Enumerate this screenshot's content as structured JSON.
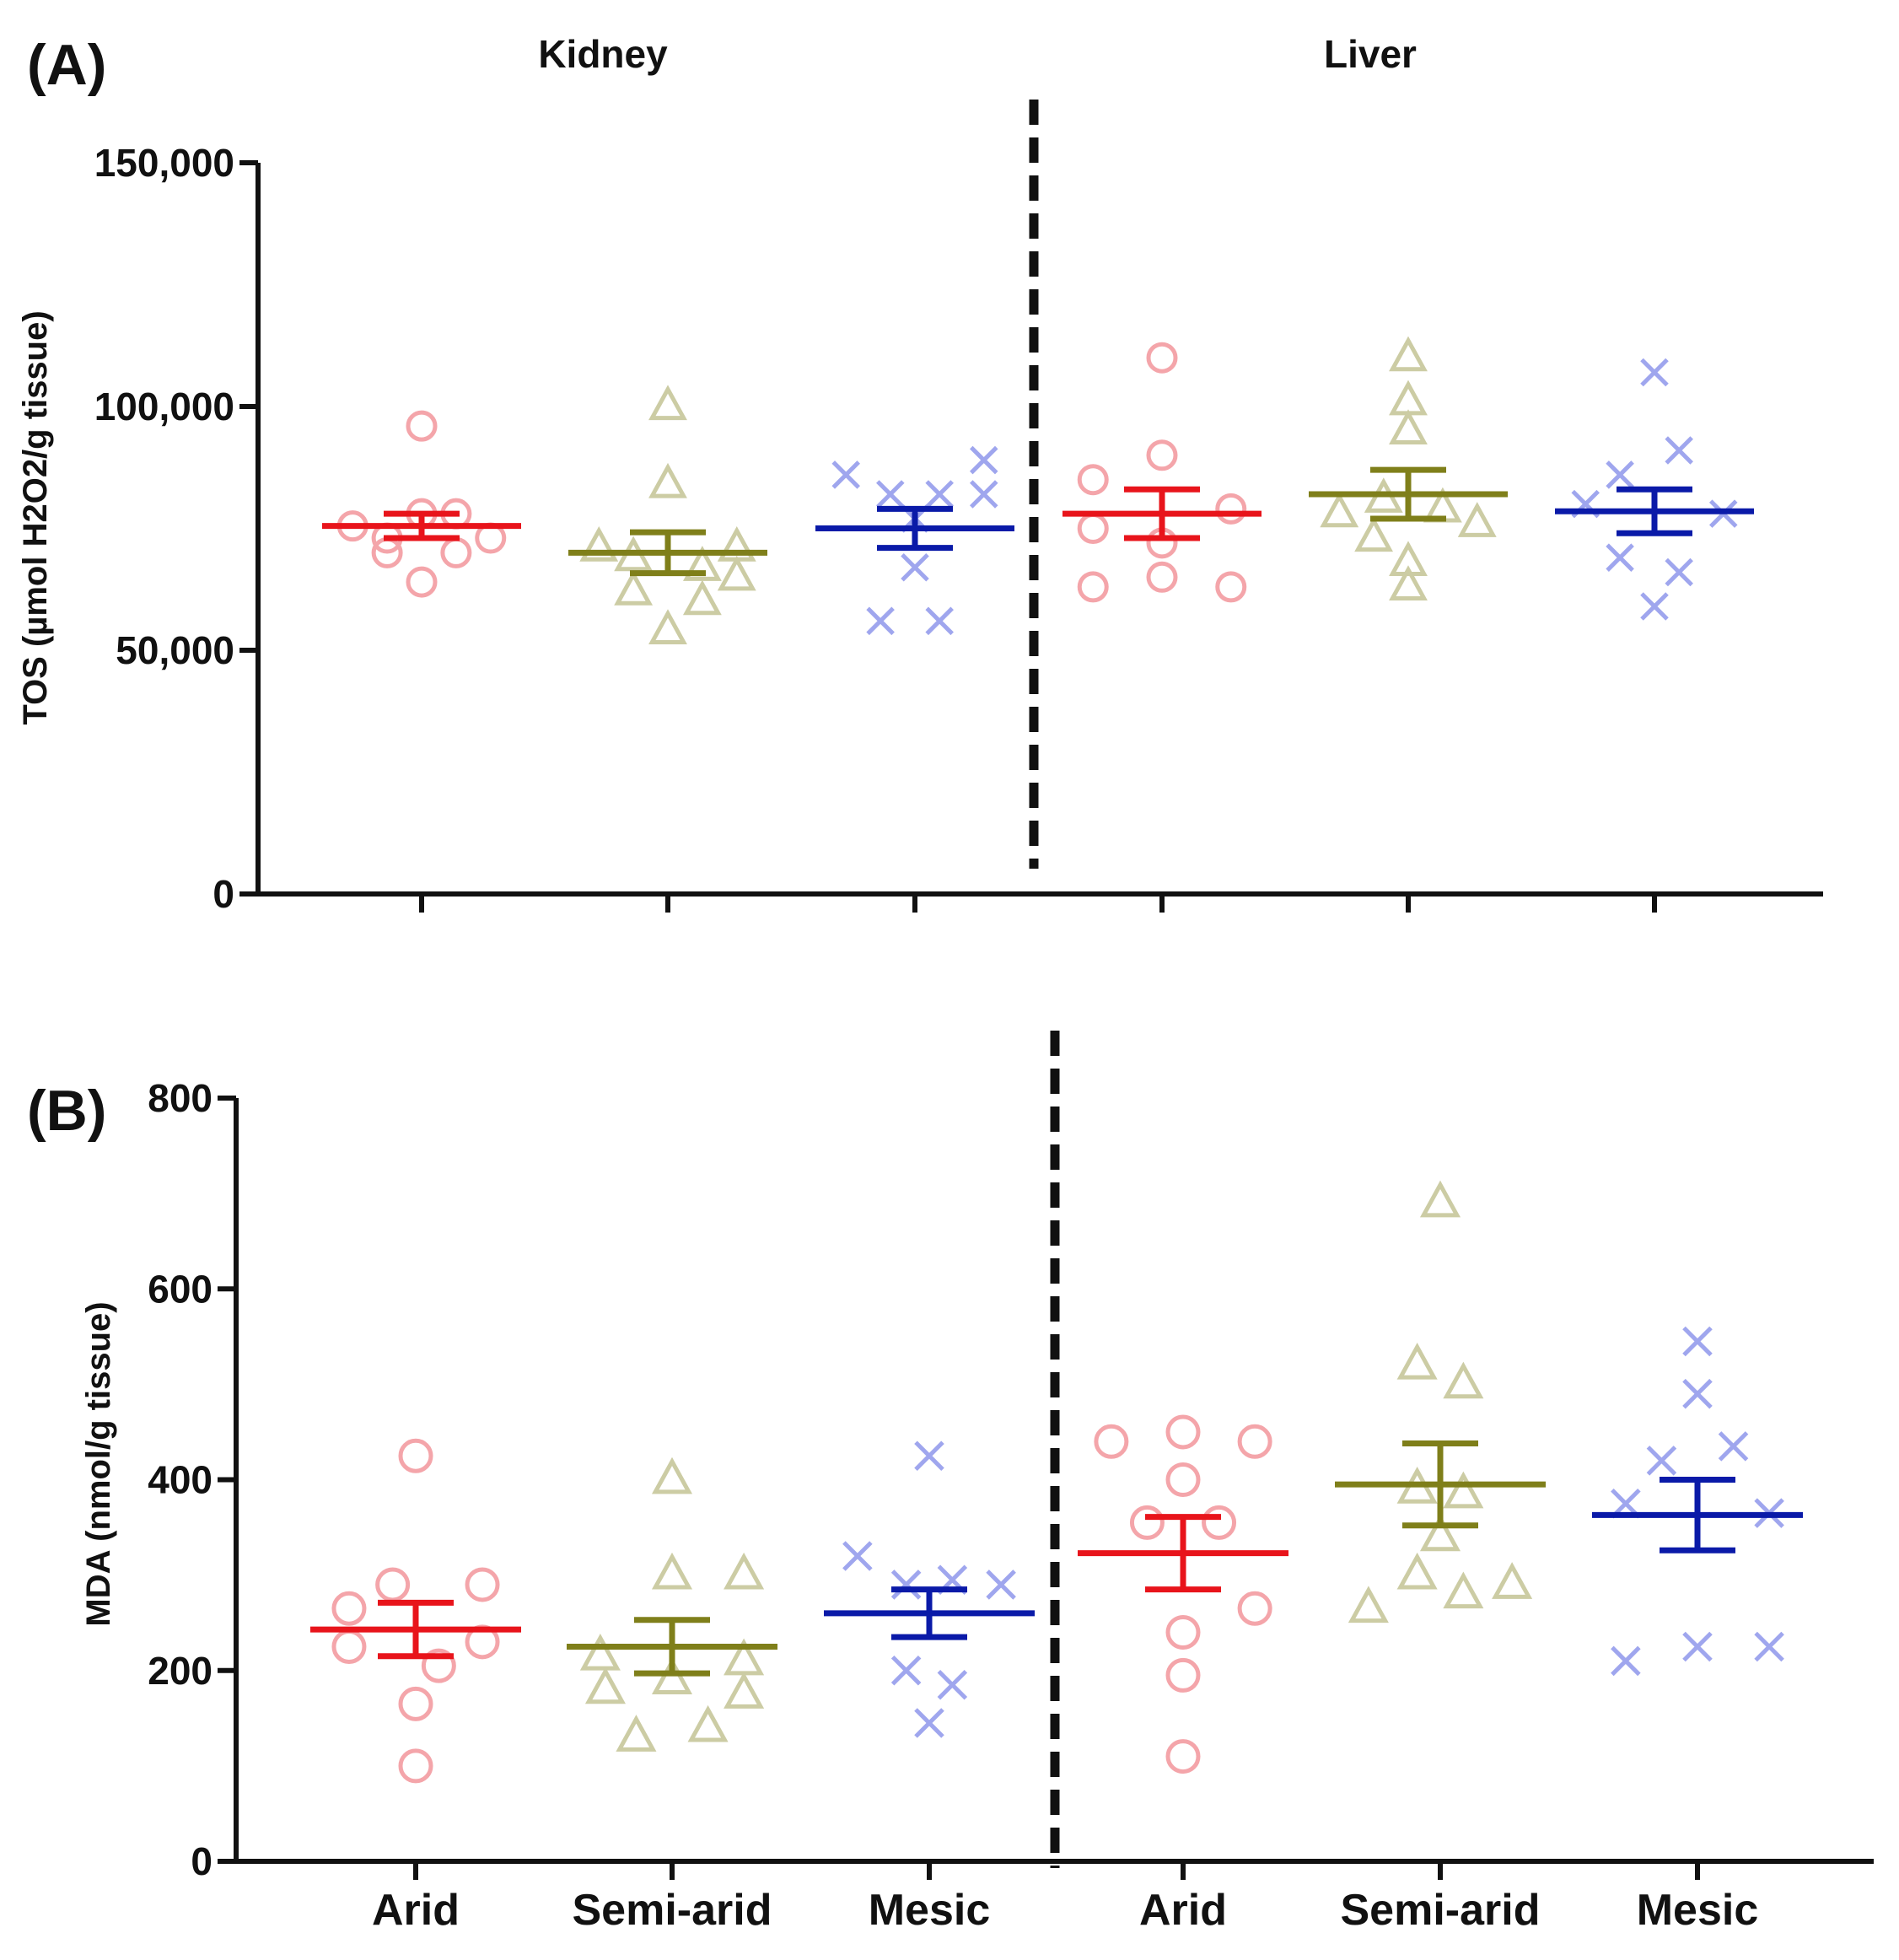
{
  "chart_data": [
    {
      "type": "scatter",
      "panel_label": "(A)",
      "group_headers": [
        "Kidney",
        "Liver"
      ],
      "ylabel": "TOS (µmol H2O2/g tissue)",
      "ylim": [
        0,
        150000
      ],
      "yticks": [
        0,
        50000,
        100000,
        150000
      ],
      "ytick_labels": [
        "0",
        "50,000",
        "100,000",
        "150,000"
      ],
      "categories": [
        "Arid",
        "Semi-arid",
        "Mesic",
        "Arid",
        "Semi-arid",
        "Mesic"
      ],
      "show_category_labels": false,
      "colors": {
        "Arid": "#e8141b",
        "Semi-arid": "#7f7f1a",
        "Mesic": "#0a1aa8"
      },
      "point_colors": {
        "Arid": "#f4a5aa",
        "Semi-arid": "#cccca4",
        "Mesic": "#9fa6ee"
      },
      "markers": {
        "Arid": "circle",
        "Semi-arid": "triangle",
        "Mesic": "cross"
      },
      "groups": [
        {
          "organ": "Kidney",
          "habitat": "Arid",
          "mean": 75500,
          "sem": 2500,
          "points": [
            [
              -0.28,
              75500
            ],
            [
              -0.14,
              73000
            ],
            [
              -0.14,
              70000
            ],
            [
              0,
              96000
            ],
            [
              0,
              78000
            ],
            [
              0,
              64000
            ],
            [
              0.14,
              78000
            ],
            [
              0.14,
              70000
            ],
            [
              0.28,
              73000
            ]
          ]
        },
        {
          "organ": "Kidney",
          "habitat": "Semi-arid",
          "mean": 70000,
          "sem": 4200,
          "points": [
            [
              -0.28,
              71000
            ],
            [
              -0.14,
              62000
            ],
            [
              -0.14,
              69000
            ],
            [
              0,
              100000
            ],
            [
              0,
              84000
            ],
            [
              0,
              54000
            ],
            [
              0.14,
              60000
            ],
            [
              0.14,
              67000
            ],
            [
              0.28,
              71000
            ],
            [
              0.28,
              65000
            ]
          ]
        },
        {
          "organ": "Kidney",
          "habitat": "Mesic",
          "mean": 75000,
          "sem": 4000,
          "points": [
            [
              -0.28,
              86000
            ],
            [
              -0.14,
              56000
            ],
            [
              -0.1,
              82000
            ],
            [
              0,
              77000
            ],
            [
              0,
              67000
            ],
            [
              0.1,
              82000
            ],
            [
              0.1,
              56000
            ],
            [
              0.28,
              89000
            ],
            [
              0.28,
              82000
            ]
          ]
        },
        {
          "organ": "Liver",
          "habitat": "Arid",
          "mean": 78000,
          "sem": 5000,
          "points": [
            [
              -0.28,
              85000
            ],
            [
              -0.28,
              75000
            ],
            [
              -0.28,
              63000
            ],
            [
              0,
              110000
            ],
            [
              0,
              90000
            ],
            [
              0,
              72000
            ],
            [
              0,
              65000
            ],
            [
              0.28,
              79000
            ],
            [
              0.28,
              63000
            ]
          ]
        },
        {
          "organ": "Liver",
          "habitat": "Semi-arid",
          "mean": 82000,
          "sem": 5000,
          "points": [
            [
              -0.28,
              78000
            ],
            [
              -0.14,
              73000
            ],
            [
              -0.1,
              81000
            ],
            [
              0,
              110000
            ],
            [
              0,
              101000
            ],
            [
              0,
              95000
            ],
            [
              0,
              68000
            ],
            [
              0,
              63000
            ],
            [
              0.14,
              79000
            ],
            [
              0.28,
              76000
            ]
          ]
        },
        {
          "organ": "Liver",
          "habitat": "Mesic",
          "mean": 78500,
          "sem": 4500,
          "points": [
            [
              -0.28,
              80000
            ],
            [
              -0.14,
              86000
            ],
            [
              -0.14,
              69000
            ],
            [
              0,
              107000
            ],
            [
              0,
              59000
            ],
            [
              0.1,
              91000
            ],
            [
              0.1,
              66000
            ],
            [
              0.28,
              78000
            ]
          ]
        }
      ]
    },
    {
      "type": "scatter",
      "panel_label": "(B)",
      "ylabel": "MDA (nmol/g tissue)",
      "ylim": [
        0,
        800
      ],
      "yticks": [
        0,
        200,
        400,
        600,
        800
      ],
      "ytick_labels": [
        "0",
        "200",
        "400",
        "600",
        "800"
      ],
      "categories": [
        "Arid",
        "Semi-arid",
        "Mesic",
        "Arid",
        "Semi-arid",
        "Mesic"
      ],
      "show_category_labels": true,
      "colors": {
        "Arid": "#e8141b",
        "Semi-arid": "#7f7f1a",
        "Mesic": "#0a1aa8"
      },
      "point_colors": {
        "Arid": "#f4a5aa",
        "Semi-arid": "#cccca4",
        "Mesic": "#9fa6ee"
      },
      "markers": {
        "Arid": "circle",
        "Semi-arid": "triangle",
        "Mesic": "cross"
      },
      "groups": [
        {
          "organ": "Kidney",
          "habitat": "Arid",
          "mean": 243,
          "sem": 28,
          "points": [
            [
              -0.26,
              265
            ],
            [
              -0.26,
              225
            ],
            [
              -0.09,
              290
            ],
            [
              0,
              425
            ],
            [
              0,
              165
            ],
            [
              0,
              100
            ],
            [
              0.09,
              205
            ],
            [
              0.26,
              290
            ],
            [
              0.26,
              230
            ]
          ]
        },
        {
          "organ": "Kidney",
          "habitat": "Semi-arid",
          "mean": 225,
          "sem": 28,
          "points": [
            [
              -0.28,
              215
            ],
            [
              -0.26,
              180
            ],
            [
              -0.14,
              130
            ],
            [
              0,
              400
            ],
            [
              0,
              300
            ],
            [
              0,
              190
            ],
            [
              0.14,
              140
            ],
            [
              0.28,
              300
            ],
            [
              0.28,
              210
            ],
            [
              0.28,
              175
            ]
          ]
        },
        {
          "organ": "Kidney",
          "habitat": "Mesic",
          "mean": 260,
          "sem": 25,
          "points": [
            [
              -0.28,
              320
            ],
            [
              -0.09,
              200
            ],
            [
              -0.09,
              290
            ],
            [
              0,
              425
            ],
            [
              0,
              145
            ],
            [
              0.09,
              185
            ],
            [
              0.09,
              295
            ],
            [
              0.28,
              290
            ]
          ]
        },
        {
          "organ": "Liver",
          "habitat": "Arid",
          "mean": 323,
          "sem": 38,
          "points": [
            [
              -0.28,
              440
            ],
            [
              -0.14,
              355
            ],
            [
              0,
              450
            ],
            [
              0,
              400
            ],
            [
              0,
              240
            ],
            [
              0,
              195
            ],
            [
              0,
              110
            ],
            [
              0.14,
              355
            ],
            [
              0.28,
              440
            ],
            [
              0.28,
              265
            ]
          ]
        },
        {
          "organ": "Liver",
          "habitat": "Semi-arid",
          "mean": 395,
          "sem": 43,
          "points": [
            [
              -0.28,
              265
            ],
            [
              -0.09,
              520
            ],
            [
              -0.09,
              300
            ],
            [
              -0.09,
              390
            ],
            [
              0,
              690
            ],
            [
              0,
              340
            ],
            [
              0.09,
              500
            ],
            [
              0.09,
              385
            ],
            [
              0.09,
              280
            ],
            [
              0.28,
              290
            ]
          ]
        },
        {
          "organ": "Liver",
          "habitat": "Mesic",
          "mean": 363,
          "sem": 37,
          "points": [
            [
              -0.28,
              375
            ],
            [
              -0.28,
              210
            ],
            [
              -0.14,
              420
            ],
            [
              0,
              545
            ],
            [
              0,
              490
            ],
            [
              0,
              225
            ],
            [
              0.14,
              435
            ],
            [
              0.28,
              365
            ],
            [
              0.28,
              225
            ]
          ]
        }
      ]
    }
  ]
}
